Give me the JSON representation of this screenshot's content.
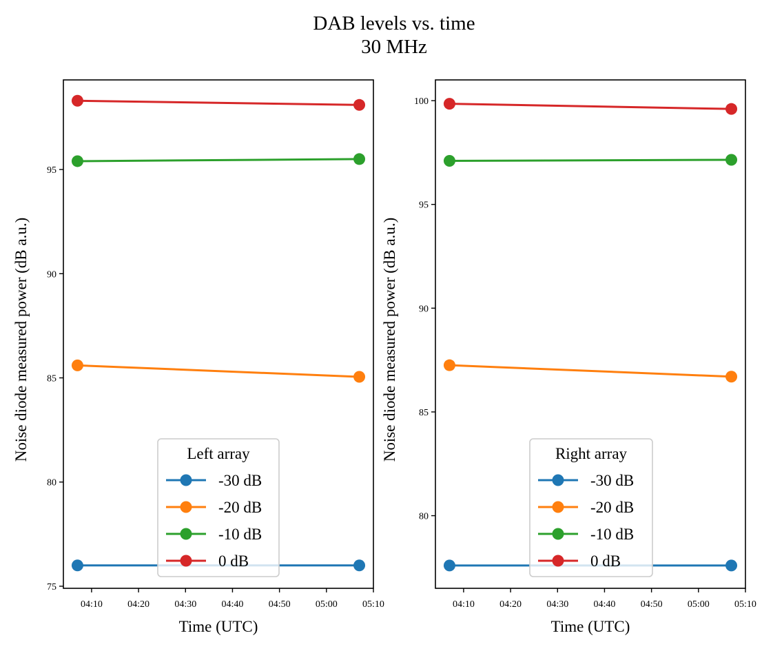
{
  "figure": {
    "title_line1": "DAB levels vs. time",
    "title_line2": "30 MHz"
  },
  "chart_data": [
    {
      "type": "line",
      "panel": "left",
      "title": "",
      "xlabel": "Time (UTC)",
      "ylabel": "Noise diode measured power (dB a.u.)",
      "x": [
        "04:07",
        "05:07"
      ],
      "x_minutes": [
        247,
        307
      ],
      "xlim_minutes": [
        244,
        310
      ],
      "xticks": [
        "04:10",
        "04:20",
        "04:30",
        "04:40",
        "04:50",
        "05:00",
        "05:10"
      ],
      "xticks_minutes": [
        250,
        260,
        270,
        280,
        290,
        300,
        310
      ],
      "ylim": [
        74.9,
        99.3
      ],
      "yticks": [
        75,
        80,
        85,
        90,
        95
      ],
      "grid": false,
      "legend": {
        "title": "Left array",
        "placement": "lower-center"
      },
      "series": [
        {
          "name": "-30 dB",
          "color": "#1f77b4",
          "values": [
            76.0,
            76.0
          ]
        },
        {
          "name": "-20 dB",
          "color": "#ff7f0e",
          "values": [
            85.6,
            85.05
          ]
        },
        {
          "name": "-10 dB",
          "color": "#2ca02c",
          "values": [
            95.4,
            95.5
          ]
        },
        {
          "name": "0 dB",
          "color": "#d62728",
          "values": [
            98.3,
            98.1
          ]
        }
      ]
    },
    {
      "type": "line",
      "panel": "right",
      "title": "",
      "xlabel": "Time (UTC)",
      "ylabel": "Noise diode measured power (dB a.u.)",
      "x": [
        "04:07",
        "05:07"
      ],
      "x_minutes": [
        247,
        307
      ],
      "xlim_minutes": [
        244,
        310
      ],
      "xticks": [
        "04:10",
        "04:20",
        "04:30",
        "04:40",
        "04:50",
        "05:00",
        "05:10"
      ],
      "xticks_minutes": [
        250,
        260,
        270,
        280,
        290,
        300,
        310
      ],
      "ylim": [
        76.5,
        101.0
      ],
      "yticks": [
        80,
        85,
        90,
        95,
        100
      ],
      "grid": false,
      "legend": {
        "title": "Right array",
        "placement": "lower-center"
      },
      "series": [
        {
          "name": "-30 dB",
          "color": "#1f77b4",
          "values": [
            77.6,
            77.6
          ]
        },
        {
          "name": "-20 dB",
          "color": "#ff7f0e",
          "values": [
            87.25,
            86.7
          ]
        },
        {
          "name": "-10 dB",
          "color": "#2ca02c",
          "values": [
            97.1,
            97.15
          ]
        },
        {
          "name": "0 dB",
          "color": "#d62728",
          "values": [
            99.85,
            99.6
          ]
        }
      ]
    }
  ]
}
